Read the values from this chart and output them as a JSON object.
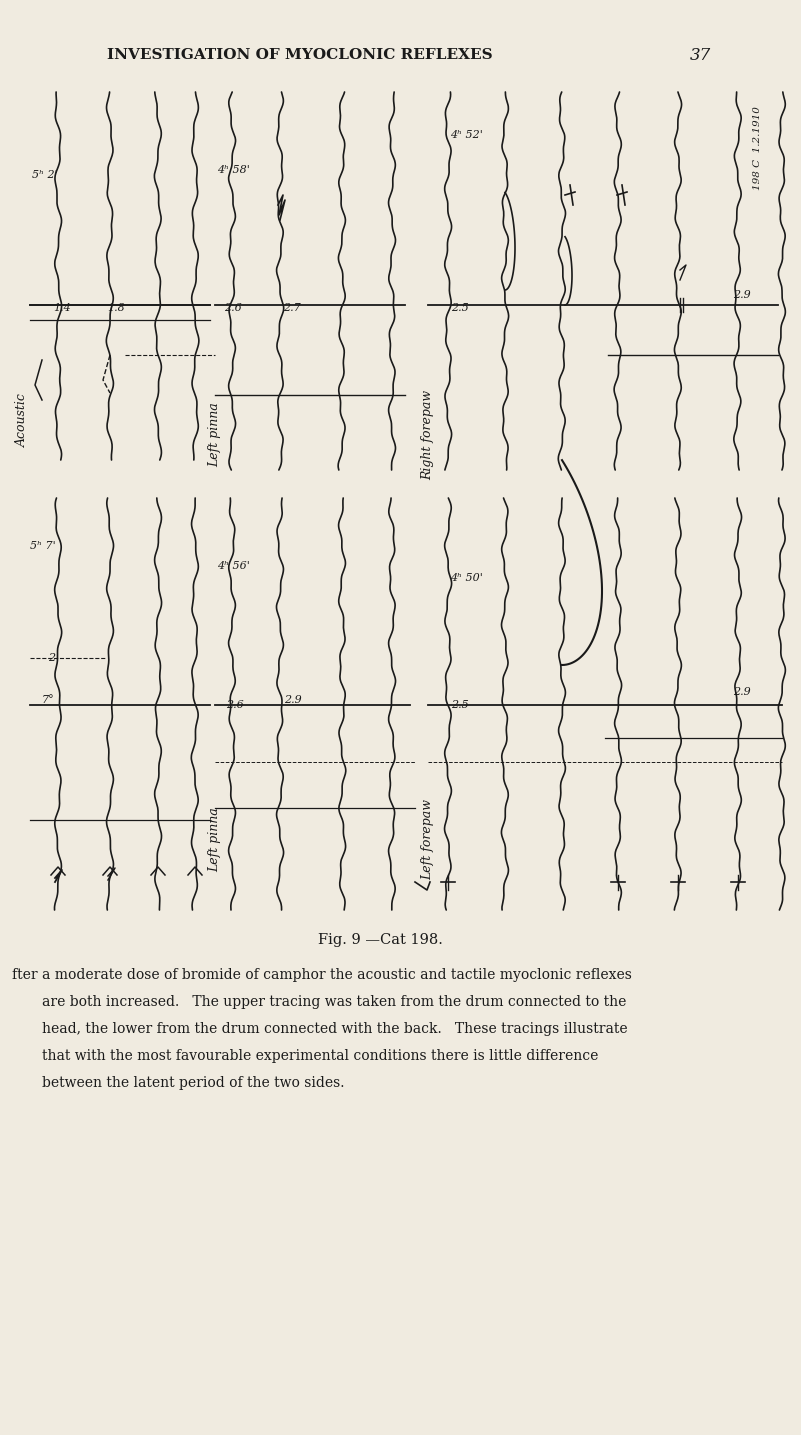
{
  "bg_color": "#f0ebe0",
  "text_color": "#1a1a1a",
  "page_title": "INVESTIGATION OF MYOCLONIC REFLEXES",
  "page_number": "37",
  "fig_caption": "Fig. 9 —Cat 198.",
  "body_text": [
    "fter a moderate dose of bromide of camphor the acoustic and tactile myoclonic reflexes",
    "are both increased.   The upper tracing was taken from the drum connected to the",
    "head, the lower from the drum connected with the back.   These tracings illustrate",
    "that with the most favourable experimental conditions there is little difference",
    "between the latent period of the two sides."
  ],
  "top_panel": {
    "label_left": "5ʰ 2'",
    "label_mid": "4ʰ 58'",
    "label_right_1": "4ʰ 52'",
    "label_right_2": "198 C  1.2.1910",
    "annotation_left_1": "1.4",
    "annotation_left_2": "1.8",
    "annotation_mid_1": "2.6",
    "annotation_mid_2": "2.7",
    "annotation_right_1": "2.5",
    "annotation_right_2": "2.9",
    "label_acoustic": "Acoustic",
    "label_left_pinna": "Left pinna",
    "label_right_forepaw": "Right forepaw"
  },
  "bottom_panel": {
    "label_left": "5ʰ 7'",
    "label_mid": "4ʰ 56'",
    "label_right": "4ʰ 50'",
    "annotation_left_1": "7°",
    "annotation_left_2": "2",
    "annotation_mid_1": "2.6",
    "annotation_mid_2": "2.9",
    "annotation_right_1": "2.5",
    "annotation_right_2": "2.9",
    "label_left_pinna": "Left pinna",
    "label_left_forepaw": "Left forepaw"
  }
}
